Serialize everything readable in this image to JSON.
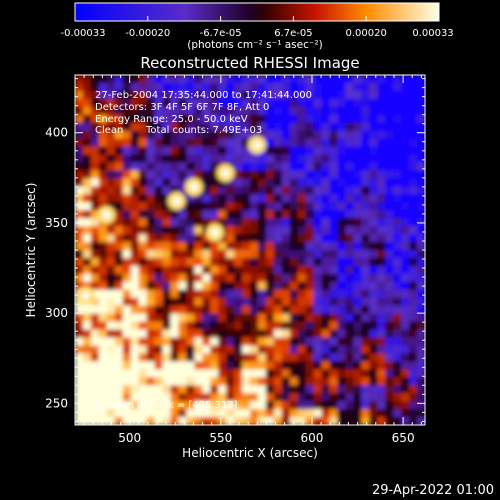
{
  "chart_data": {
    "type": "heatmap",
    "title": "Reconstructed RHESSI Image",
    "xlabel": "Heliocentric X (arcsec)",
    "ylabel": "Heliocentric Y (arcsec)",
    "xlim": [
      470,
      662
    ],
    "ylim": [
      238,
      432
    ],
    "xticks": [
      "500",
      "550",
      "600",
      "650"
    ],
    "yticks": [
      "250",
      "300",
      "350",
      "400"
    ],
    "colorbar": {
      "ticks": [
        "-0.00033",
        "-0.00020",
        "-6.7e-05",
        "6.7e-05",
        "0.00020",
        "0.00033"
      ],
      "unit_label": "(photons cm⁻² s⁻¹ asec⁻²)",
      "range": [
        -0.00033,
        0.00033
      ]
    },
    "annotations": [
      "27-Feb-2004 17:35:44.000 to 17:41:44.000",
      "Detectors: 3F 4F 5F 6F 7F 8F, Att 0",
      "Energy Range: 25.0 - 50.0 keV",
      "Clean",
      "Total counts: 7.49E+03"
    ],
    "peak_label": "Position of Peak = [475,317]",
    "peak": [
      475,
      317
    ]
  },
  "footer": {
    "date": "29-Apr-2022 01:00"
  }
}
